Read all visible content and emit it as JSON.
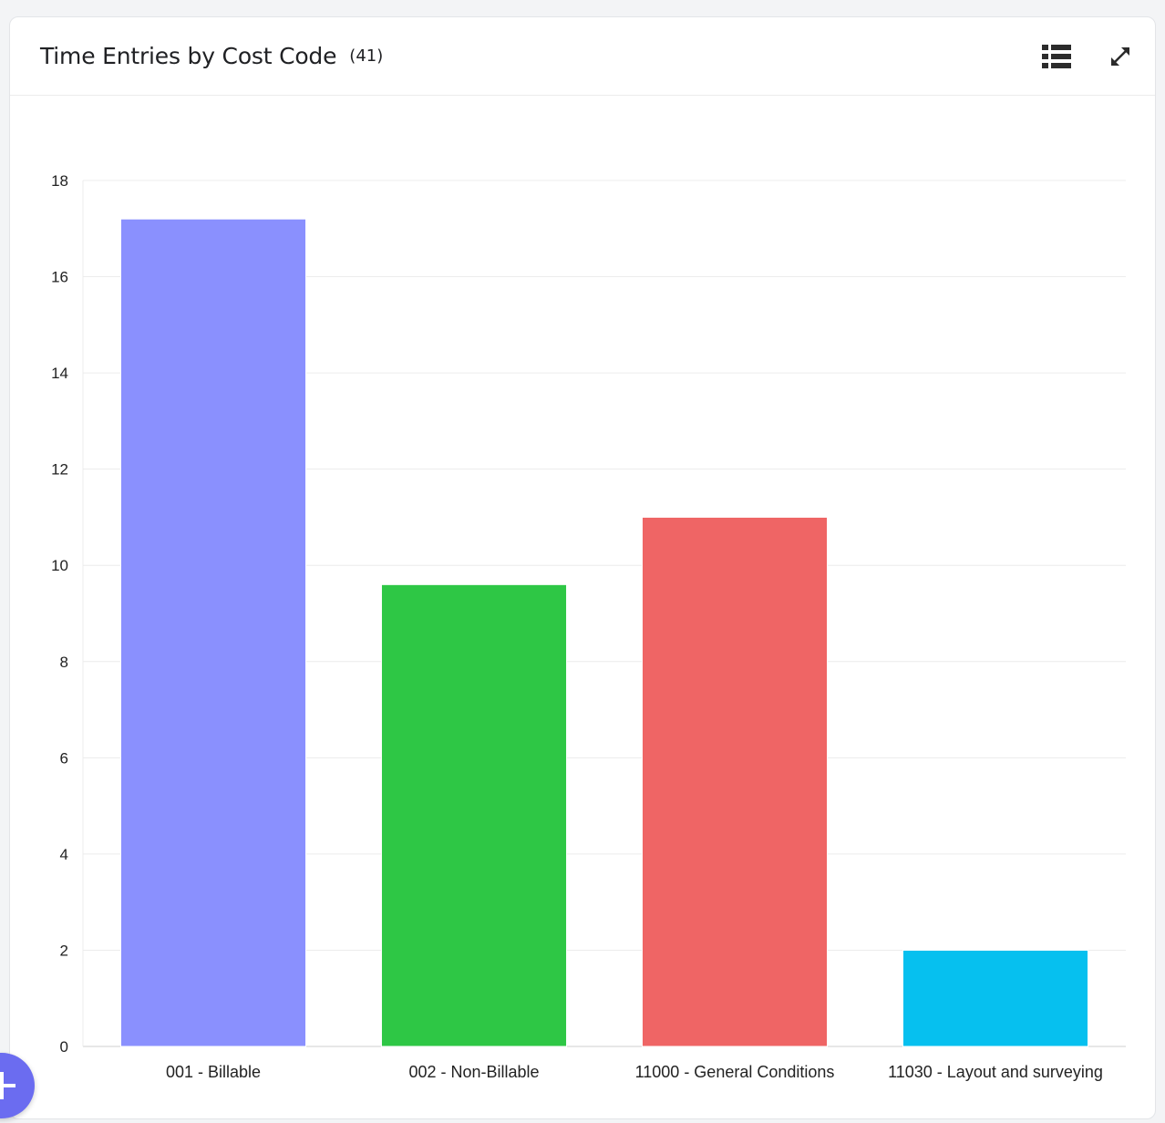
{
  "header": {
    "title": "Time Entries by Cost Code",
    "count": "(41)",
    "icons": {
      "list": "list-view-icon",
      "expand": "expand-icon"
    }
  },
  "fab": {
    "icon": "plus-icon"
  },
  "chart_data": {
    "type": "bar",
    "categories": [
      "001 - Billable",
      "002 - Non-Billable",
      "11000 - General Conditions",
      "11030 - Layout and surveying"
    ],
    "values": [
      17.2,
      9.6,
      11,
      2
    ],
    "colors": [
      "#8a90fe",
      "#2ec745",
      "#ef6565",
      "#06c0ef"
    ],
    "ylim": [
      0,
      18
    ],
    "yticks": [
      0,
      2,
      4,
      6,
      8,
      10,
      12,
      14,
      16,
      18
    ],
    "grid": true,
    "legend": "none"
  }
}
